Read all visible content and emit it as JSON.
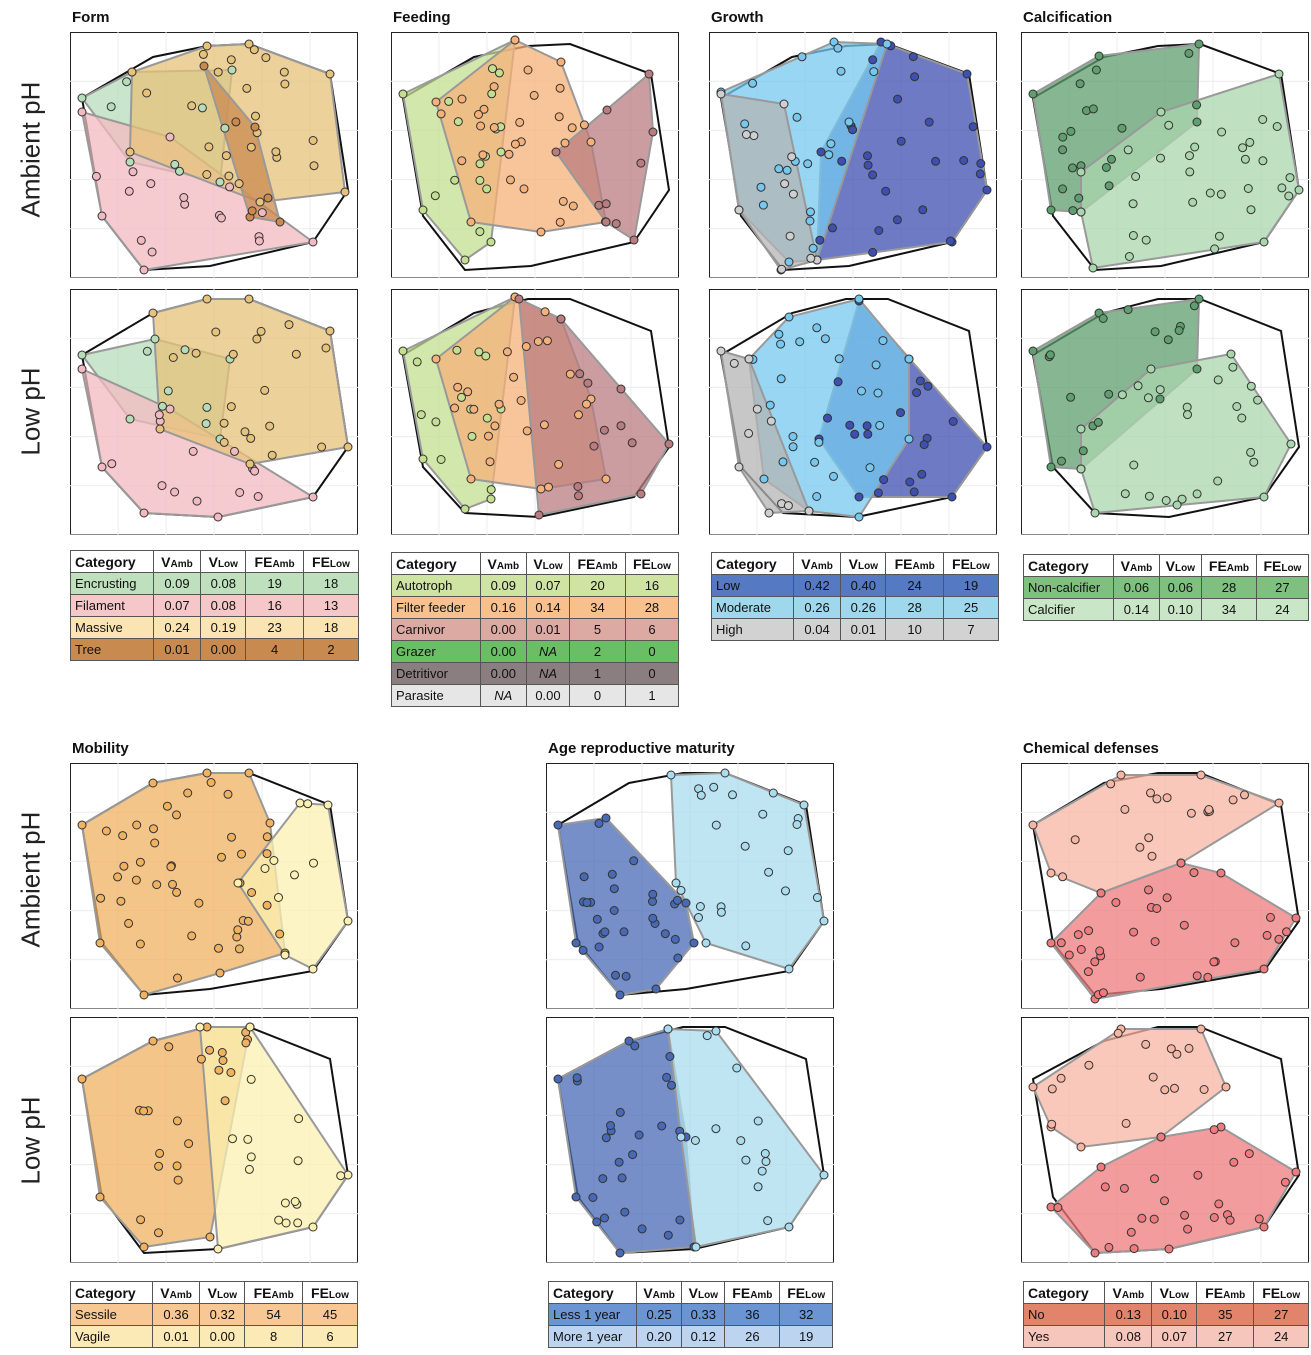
{
  "row_labels": {
    "ambient": "Ambient pH",
    "low": "Low pH"
  },
  "table_header": {
    "category": "Category",
    "v": "V",
    "fe": "FE",
    "amb": "Amb",
    "low": "Low"
  },
  "panels": [
    {
      "id": "form",
      "title": "Form",
      "rows": [
        {
          "category": "Encrusting",
          "v_amb": "0.09",
          "v_low": "0.08",
          "fe_amb": "19",
          "fe_low": "18",
          "color": "#bfe0bd"
        },
        {
          "category": "Filament",
          "v_amb": "0.07",
          "v_low": "0.08",
          "fe_amb": "16",
          "fe_low": "13",
          "color": "#f5c7c9"
        },
        {
          "category": "Massive",
          "v_amb": "0.24",
          "v_low": "0.19",
          "fe_amb": "23",
          "fe_low": "18",
          "color": "#fbe4b4"
        },
        {
          "category": "Tree",
          "v_amb": "0.01",
          "v_low": "0.00",
          "fe_amb": "4",
          "fe_low": "2",
          "color": "#c98a4f"
        }
      ]
    },
    {
      "id": "feeding",
      "title": "Feeding",
      "rows": [
        {
          "category": "Autotroph",
          "v_amb": "0.09",
          "v_low": "0.07",
          "fe_amb": "20",
          "fe_low": "16",
          "color": "#cfe3a3"
        },
        {
          "category": "Filter feeder",
          "v_amb": "0.16",
          "v_low": "0.14",
          "fe_amb": "34",
          "fe_low": "28",
          "color": "#f7c08c"
        },
        {
          "category": "Carnivor",
          "v_amb": "0.00",
          "v_low": "0.01",
          "fe_amb": "5",
          "fe_low": "6",
          "color": "#dcaaa2"
        },
        {
          "category": "Grazer",
          "v_amb": "0.00",
          "v_low": "NA",
          "fe_amb": "2",
          "fe_low": "0",
          "color": "#6bbd66"
        },
        {
          "category": "Detritivor",
          "v_amb": "0.00",
          "v_low": "NA",
          "fe_amb": "1",
          "fe_low": "0",
          "color": "#8b7e80"
        },
        {
          "category": "Parasite",
          "v_amb": "NA",
          "v_low": "0.00",
          "fe_amb": "0",
          "fe_low": "1",
          "color": "#e6e6e6"
        }
      ]
    },
    {
      "id": "growth",
      "title": "Growth",
      "rows": [
        {
          "category": "Low",
          "v_amb": "0.42",
          "v_low": "0.40",
          "fe_amb": "24",
          "fe_low": "19",
          "color": "#5579c2"
        },
        {
          "category": "Moderate",
          "v_amb": "0.26",
          "v_low": "0.26",
          "fe_amb": "28",
          "fe_low": "25",
          "color": "#9fd8ec"
        },
        {
          "category": "High",
          "v_amb": "0.04",
          "v_low": "0.01",
          "fe_amb": "10",
          "fe_low": "7",
          "color": "#d2d2d2"
        }
      ]
    },
    {
      "id": "calcification",
      "title": "Calcification",
      "rows": [
        {
          "category": "Non-calcifier",
          "v_amb": "0.06",
          "v_low": "0.06",
          "fe_amb": "28",
          "fe_low": "27",
          "color": "#7fbf7f"
        },
        {
          "category": "Calcifier",
          "v_amb": "0.14",
          "v_low": "0.10",
          "fe_amb": "34",
          "fe_low": "24",
          "color": "#c9e6c6"
        }
      ]
    },
    {
      "id": "mobility",
      "title": "Mobility",
      "rows": [
        {
          "category": "Sessile",
          "v_amb": "0.36",
          "v_low": "0.32",
          "fe_amb": "54",
          "fe_low": "45",
          "color": "#f7c894"
        },
        {
          "category": "Vagile",
          "v_amb": "0.01",
          "v_low": "0.00",
          "fe_amb": "8",
          "fe_low": "6",
          "color": "#fbe9b6"
        }
      ]
    },
    {
      "id": "age",
      "title": "Age reproductive maturity",
      "rows": [
        {
          "category": "Less 1 year",
          "v_amb": "0.25",
          "v_low": "0.33",
          "fe_amb": "36",
          "fe_low": "32",
          "color": "#6b94d2"
        },
        {
          "category": "More 1 year",
          "v_amb": "0.20",
          "v_low": "0.12",
          "fe_amb": "26",
          "fe_low": "19",
          "color": "#bcd4ef"
        }
      ]
    },
    {
      "id": "chemical",
      "title": "Chemical defenses",
      "rows": [
        {
          "category": "No",
          "v_amb": "0.13",
          "v_low": "0.10",
          "fe_amb": "35",
          "fe_low": "27",
          "color": "#e2836b"
        },
        {
          "category": "Yes",
          "v_amb": "0.08",
          "v_low": "0.07",
          "fe_amb": "27",
          "fe_low": "24",
          "color": "#f6c5bb"
        }
      ]
    }
  ],
  "chart_data": {
    "type": "scatter",
    "description_values": "Functional-space convex hulls per trait category under ambient and low pH; axes unlabeled.",
    "panels": [
      {
        "panel": "Form",
        "categories": [
          "Encrusting",
          "Filament",
          "Massive",
          "Tree"
        ],
        "colors": [
          "#b7dcb9",
          "#f3b9c0",
          "#e7c27a",
          "#c98a4f"
        ]
      },
      {
        "panel": "Feeding",
        "categories": [
          "Autotroph",
          "Filter feeder",
          "Carnivor",
          "Grazer",
          "Detritivor",
          "Parasite"
        ],
        "colors": [
          "#c3df8f",
          "#f5b17a",
          "#b97c80",
          "#6bbd66",
          "#8b7e80",
          "#e6e6e6"
        ]
      },
      {
        "panel": "Growth",
        "categories": [
          "Low",
          "Moderate",
          "High"
        ],
        "colors": [
          "#3d4fb0",
          "#76c8ef",
          "#b4b4b4"
        ]
      },
      {
        "panel": "Calcification",
        "categories": [
          "Non-calcifier",
          "Calcifier"
        ],
        "colors": [
          "#5f9e6e",
          "#a9d6ac"
        ]
      },
      {
        "panel": "Mobility",
        "categories": [
          "Sessile",
          "Vagile"
        ],
        "colors": [
          "#f0b260",
          "#fbf0b0"
        ]
      },
      {
        "panel": "Age reproductive maturity",
        "categories": [
          "Less 1 year",
          "More 1 year"
        ],
        "colors": [
          "#4869b6",
          "#a9dcef"
        ]
      },
      {
        "panel": "Chemical defenses",
        "categories": [
          "No",
          "Yes"
        ],
        "colors": [
          "#ee7b7e",
          "#f7b5a3"
        ]
      }
    ]
  }
}
